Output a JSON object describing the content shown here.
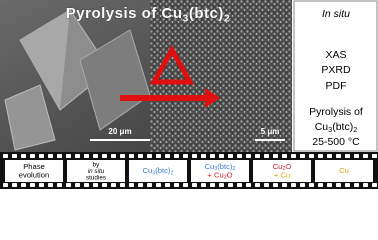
{
  "image": {
    "title": [
      "Pyrolysis of Cu",
      "3",
      "(btc)",
      "2"
    ],
    "scale_left": "20 μm",
    "scale_right": "5 μm"
  },
  "side_panel": {
    "lines": [
      {
        "parts": [
          "In situ"
        ],
        "italic": true
      },
      {
        "parts": [
          "XAS"
        ]
      },
      {
        "parts": [
          "PXRD"
        ]
      },
      {
        "parts": [
          "PDF"
        ]
      },
      {
        "parts": [
          "Pyrolysis of"
        ]
      },
      {
        "parts": [
          "Cu",
          "3",
          "(btc)",
          "2"
        ]
      },
      {
        "parts": [
          "25-500 °C"
        ]
      }
    ]
  },
  "film_strip": {
    "frames": [
      {
        "lines": [
          {
            "parts": [
              "Phase"
            ],
            "color": "#000000"
          },
          {
            "parts": [
              "evolution"
            ],
            "color": "#000000"
          }
        ]
      },
      {
        "lines": [
          {
            "parts": [
              "by"
            ],
            "color": "#000000"
          },
          {
            "parts": [
              "in situ"
            ],
            "color": "#000000",
            "italic": true
          },
          {
            "parts": [
              "studies"
            ],
            "color": "#000000"
          }
        ]
      },
      {
        "lines": [
          {
            "parts": [
              "Cu",
              "3",
              "(btc)",
              "2"
            ],
            "color": "#3a7fd0"
          }
        ]
      },
      {
        "lines": [
          {
            "parts": [
              "Cu",
              "3",
              "(btc)",
              "2"
            ],
            "color": "#3a7fd0"
          },
          {
            "parts": [
              "+ Cu",
              "2",
              "O"
            ],
            "color": "#d0202a"
          }
        ]
      },
      {
        "lines": [
          {
            "parts": [
              "Cu",
              "2",
              "O"
            ],
            "color": "#d0202a"
          },
          {
            "parts": [
              "+ Cu"
            ],
            "color": "#e0a010"
          }
        ]
      },
      {
        "lines": [
          {
            "parts": [
              "Cu"
            ],
            "color": "#e0a010"
          }
        ]
      }
    ]
  }
}
